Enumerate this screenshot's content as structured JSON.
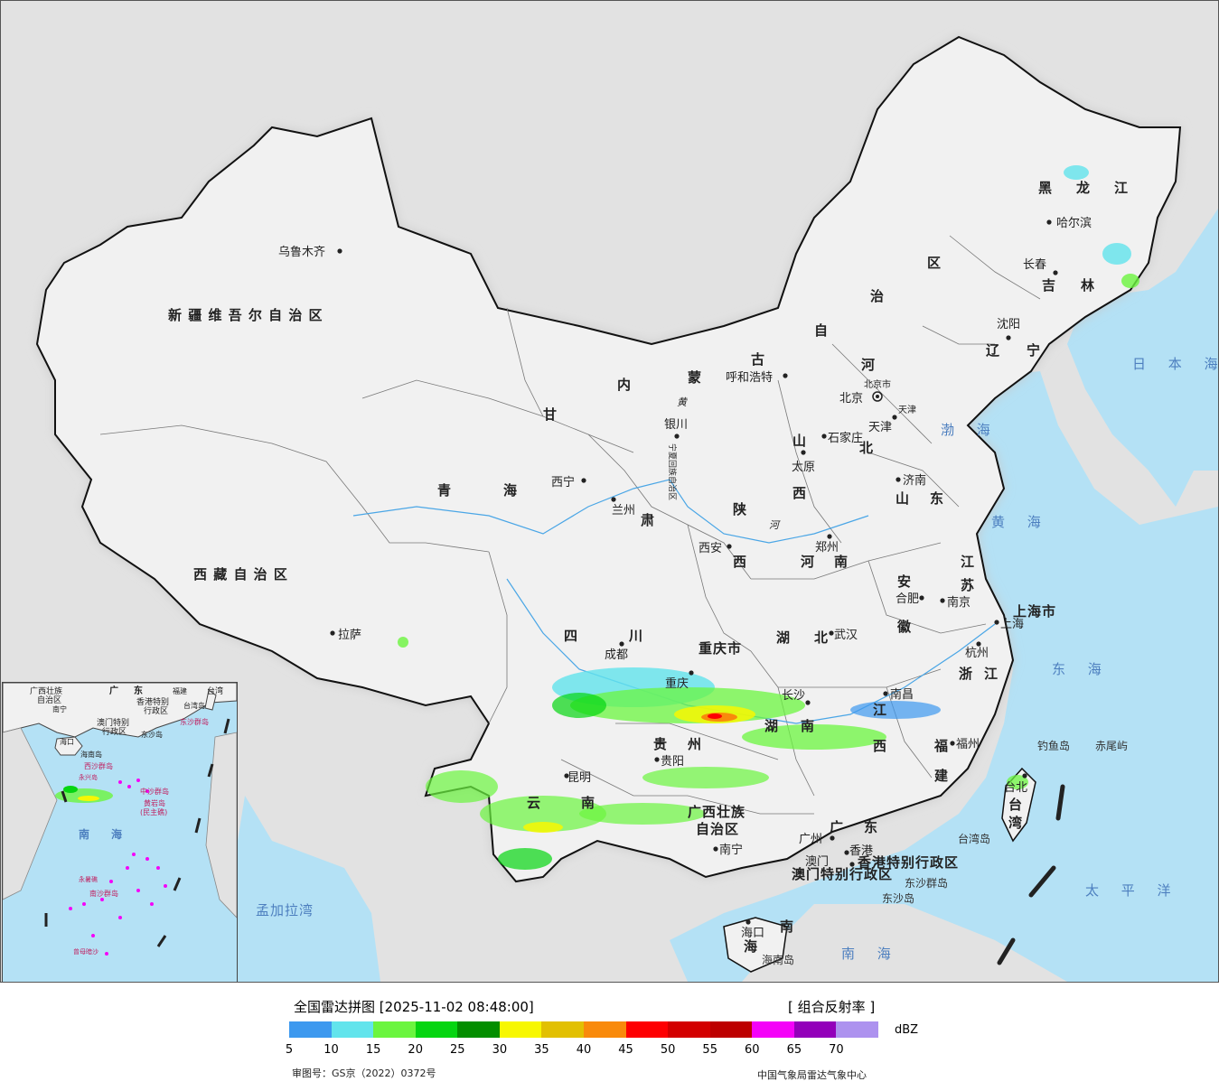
{
  "map": {
    "provinces": [
      {
        "name": "新 疆 维 吾 尔 自 治 区"
      },
      {
        "name": "西 藏 自 治 区"
      },
      {
        "name": "青"
      },
      {
        "name": "海"
      },
      {
        "name": "四"
      },
      {
        "name": "川"
      },
      {
        "name": "甘"
      },
      {
        "name": "肃"
      },
      {
        "name": "内"
      },
      {
        "name": "蒙"
      },
      {
        "name": "古"
      },
      {
        "name": "自"
      },
      {
        "name": "治"
      },
      {
        "name": "区"
      },
      {
        "name": "黑"
      },
      {
        "name": "龙"
      },
      {
        "name": "江"
      },
      {
        "name": "吉"
      },
      {
        "name": "林"
      },
      {
        "name": "辽"
      },
      {
        "name": "宁"
      },
      {
        "name": "河"
      },
      {
        "name": "北"
      },
      {
        "name": "山"
      },
      {
        "name": "西"
      },
      {
        "name": "山"
      },
      {
        "name": "东"
      },
      {
        "name": "陕"
      },
      {
        "name": "西"
      },
      {
        "name": "河"
      },
      {
        "name": "南"
      },
      {
        "name": "江"
      },
      {
        "name": "苏"
      },
      {
        "name": "安"
      },
      {
        "name": "徽"
      },
      {
        "name": "湖"
      },
      {
        "name": "北"
      },
      {
        "name": "湖"
      },
      {
        "name": "南"
      },
      {
        "name": "浙"
      },
      {
        "name": "江"
      },
      {
        "name": "江"
      },
      {
        "name": "西"
      },
      {
        "name": "福"
      },
      {
        "name": "建"
      },
      {
        "name": "贵"
      },
      {
        "name": "州"
      },
      {
        "name": "云"
      },
      {
        "name": "南"
      },
      {
        "name": "广西壮族"
      },
      {
        "name": "自治区"
      },
      {
        "name": "广"
      },
      {
        "name": "东"
      },
      {
        "name": "海"
      },
      {
        "name": "南"
      },
      {
        "name": "台"
      },
      {
        "name": "湾"
      },
      {
        "name": "重庆市"
      },
      {
        "name": "上海市"
      },
      {
        "name": "宁夏回族自治区"
      },
      {
        "name": "香港特别行政区"
      },
      {
        "name": "澳门特别行政区"
      },
      {
        "name": "北京市"
      },
      {
        "name": "天津"
      }
    ],
    "cities": [
      {
        "name": "乌鲁木齐"
      },
      {
        "name": "拉萨"
      },
      {
        "name": "西宁"
      },
      {
        "name": "兰州"
      },
      {
        "name": "银川"
      },
      {
        "name": "呼和浩特"
      },
      {
        "name": "北京"
      },
      {
        "name": "天津"
      },
      {
        "name": "石家庄"
      },
      {
        "name": "太原"
      },
      {
        "name": "济南"
      },
      {
        "name": "郑州"
      },
      {
        "name": "西安"
      },
      {
        "name": "成都"
      },
      {
        "name": "重庆"
      },
      {
        "name": "武汉"
      },
      {
        "name": "合肥"
      },
      {
        "name": "南京"
      },
      {
        "name": "上海"
      },
      {
        "name": "杭州"
      },
      {
        "name": "南昌"
      },
      {
        "name": "长沙"
      },
      {
        "name": "福州"
      },
      {
        "name": "台北"
      },
      {
        "name": "贵阳"
      },
      {
        "name": "昆明"
      },
      {
        "name": "南宁"
      },
      {
        "name": "广州"
      },
      {
        "name": "香港"
      },
      {
        "name": "澳门"
      },
      {
        "name": "海口"
      },
      {
        "name": "沈阳"
      },
      {
        "name": "长春"
      },
      {
        "name": "哈尔滨"
      }
    ],
    "seas": [
      {
        "name": "日 本 海"
      },
      {
        "name": "渤 海"
      },
      {
        "name": "黄 海"
      },
      {
        "name": "东 海"
      },
      {
        "name": "太 平 洋"
      },
      {
        "name": "南 海"
      },
      {
        "name": "孟加拉湾"
      }
    ],
    "islands": [
      {
        "name": "钓鱼岛"
      },
      {
        "name": "赤尾屿"
      },
      {
        "name": "台湾岛"
      },
      {
        "name": "东沙群岛"
      },
      {
        "name": "东沙岛"
      },
      {
        "name": "海南岛"
      }
    ],
    "rivers": [
      {
        "name": "黄"
      },
      {
        "name": "河"
      }
    ]
  },
  "inset": {
    "labels": [
      {
        "text": "广西壮族"
      },
      {
        "text": "自治区"
      },
      {
        "text": "南宁"
      },
      {
        "text": "广"
      },
      {
        "text": "东"
      },
      {
        "text": "福建"
      },
      {
        "text": "台湾"
      },
      {
        "text": "香港特别"
      },
      {
        "text": "行政区"
      },
      {
        "text": "台湾岛"
      },
      {
        "text": "澳门特别"
      },
      {
        "text": "行政区"
      },
      {
        "text": "东沙群岛"
      },
      {
        "text": "东沙岛"
      },
      {
        "text": "海口"
      },
      {
        "text": "海南岛"
      },
      {
        "text": "西沙群岛"
      },
      {
        "text": "永兴岛"
      },
      {
        "text": "中沙群岛"
      },
      {
        "text": "黄岩岛"
      },
      {
        "text": "(民主礁)"
      },
      {
        "text": "南"
      },
      {
        "text": "海"
      },
      {
        "text": "永暑礁"
      },
      {
        "text": "南沙群岛"
      },
      {
        "text": "曾母暗沙"
      }
    ]
  },
  "legend": {
    "title": "全国雷达拼图 [2025-11-02 08:48:00]",
    "product": "[ 组合反射率 ]",
    "unit": "dBZ",
    "colors": [
      "#3d99ef",
      "#62e4ec",
      "#6bf53f",
      "#05d511",
      "#038e00",
      "#f7f701",
      "#e2c002",
      "#f98a0b",
      "#fe0002",
      "#d30000",
      "#bd0000",
      "#f402f8",
      "#9300ba",
      "#ad92ef"
    ],
    "ticks": [
      "5",
      "10",
      "15",
      "20",
      "25",
      "30",
      "35",
      "40",
      "45",
      "50",
      "55",
      "60",
      "65",
      "70"
    ],
    "approval_note": "审图号：GS京（2022）0372号",
    "source_note": "中国气象局雷达气象中心"
  },
  "palette": {
    "land": "#f1f1f1",
    "water": "#b4e1f5",
    "neighbor": "#e2e2e2",
    "border": "#111111"
  }
}
